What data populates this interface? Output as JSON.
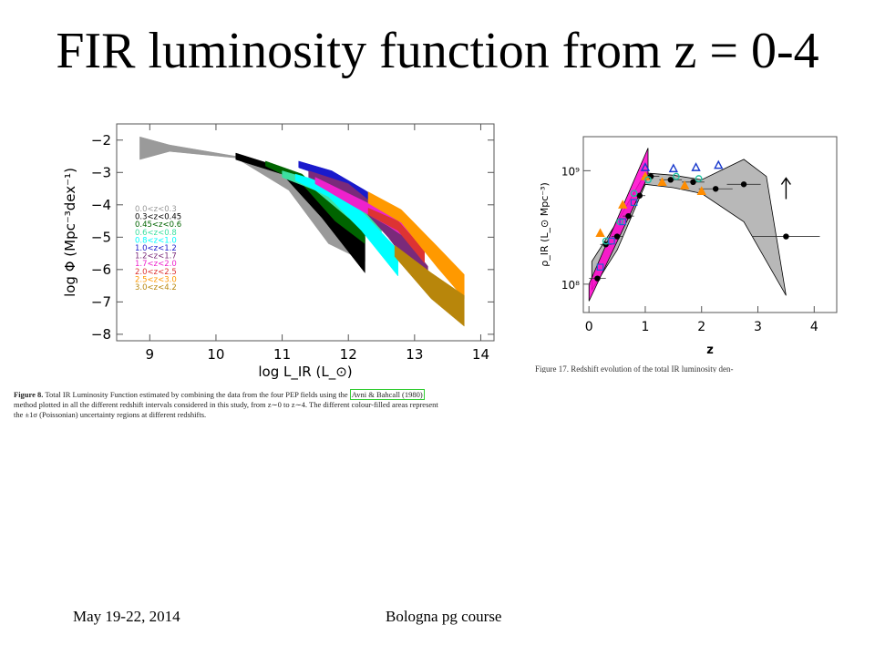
{
  "slide": {
    "title": "FIR luminosity function from z = 0-4",
    "footer_date": "May 19-22, 2014",
    "footer_course": "Bologna pg course"
  },
  "captions": {
    "fig8_label": "Figure 8.",
    "fig8_text_1": " Total IR Luminosity Function estimated by combining the data from the four PEP fields using the ",
    "fig8_cite": "Avni & Bahcall (1980)",
    "fig8_text_2": "method plotted in all the different redshift intervals considered in this study, from z∼0 to z∼4. The different colour-filled areas represent",
    "fig8_text_3": "the ±1σ (Poissonian) uncertainty regions at different redshifts.",
    "fig17_text": "Figure 17. Redshift evolution of the total IR luminosity den-"
  },
  "chart_data": [
    {
      "type": "area",
      "title": "",
      "xlabel": "log L_IR (L_⊙)",
      "ylabel": "log Φ (Mpc⁻³dex⁻¹)",
      "xlim": [
        8.5,
        14.2
      ],
      "ylim": [
        -8.2,
        -1.5
      ],
      "xticks": [
        9,
        10,
        11,
        12,
        13,
        14
      ],
      "yticks": [
        -2,
        -3,
        -4,
        -5,
        -6,
        -7,
        -8
      ],
      "legend_position": "left-middle",
      "series": [
        {
          "name": "0.0<z<0.3",
          "color": "#9a9a9a",
          "upper": [
            [
              8.85,
              -1.9
            ],
            [
              9.3,
              -2.15
            ],
            [
              10.3,
              -2.5
            ],
            [
              11.1,
              -3.05
            ],
            [
              11.7,
              -4.35
            ],
            [
              12.25,
              -4.95
            ]
          ],
          "lower": [
            [
              8.85,
              -2.6
            ],
            [
              9.3,
              -2.35
            ],
            [
              10.3,
              -2.55
            ],
            [
              11.1,
              -3.55
            ],
            [
              11.7,
              -5.2
            ],
            [
              12.25,
              -5.75
            ]
          ]
        },
        {
          "name": "0.3<z<0.45",
          "color": "#000000",
          "upper": [
            [
              10.3,
              -2.4
            ],
            [
              11.0,
              -2.85
            ],
            [
              11.6,
              -3.75
            ],
            [
              12.25,
              -5.0
            ]
          ],
          "lower": [
            [
              10.3,
              -2.6
            ],
            [
              11.0,
              -3.05
            ],
            [
              11.6,
              -4.4
            ],
            [
              12.25,
              -6.1
            ]
          ]
        },
        {
          "name": "0.45<z<0.6",
          "color": "#006400",
          "upper": [
            [
              10.75,
              -2.65
            ],
            [
              11.3,
              -3.05
            ],
            [
              11.8,
              -4.0
            ],
            [
              12.25,
              -4.9
            ]
          ],
          "lower": [
            [
              10.75,
              -2.8
            ],
            [
              11.3,
              -3.35
            ],
            [
              11.8,
              -4.5
            ],
            [
              12.25,
              -5.2
            ]
          ]
        },
        {
          "name": "0.6<z<0.8",
          "color": "#3ce0a0",
          "upper": [
            [
              11.0,
              -2.95
            ],
            [
              11.5,
              -3.25
            ],
            [
              12.0,
              -3.9
            ],
            [
              12.5,
              -4.55
            ]
          ],
          "lower": [
            [
              11.0,
              -3.15
            ],
            [
              11.5,
              -3.55
            ],
            [
              12.0,
              -4.4
            ],
            [
              12.5,
              -5.0
            ]
          ]
        },
        {
          "name": "0.8<z<1.0",
          "color": "#00ffff",
          "upper": [
            [
              11.2,
              -3.05
            ],
            [
              11.7,
              -3.35
            ],
            [
              12.2,
              -4.2
            ],
            [
              12.75,
              -5.4
            ]
          ],
          "lower": [
            [
              11.2,
              -3.25
            ],
            [
              11.7,
              -3.75
            ],
            [
              12.2,
              -4.8
            ],
            [
              12.75,
              -6.2
            ]
          ]
        },
        {
          "name": "1.0<z<1.2",
          "color": "#1a1acc",
          "upper": [
            [
              11.25,
              -2.65
            ],
            [
              11.75,
              -2.95
            ],
            [
              12.25,
              -3.55
            ],
            [
              12.75,
              -4.2
            ]
          ],
          "lower": [
            [
              11.25,
              -2.85
            ],
            [
              11.75,
              -3.2
            ],
            [
              12.25,
              -3.85
            ],
            [
              12.75,
              -4.5
            ]
          ]
        },
        {
          "name": "1.2<z<1.7",
          "color": "#7a2a7a",
          "upper": [
            [
              11.4,
              -2.95
            ],
            [
              12.0,
              -3.35
            ],
            [
              12.6,
              -4.35
            ],
            [
              13.2,
              -5.9
            ]
          ],
          "lower": [
            [
              11.4,
              -3.15
            ],
            [
              12.0,
              -3.65
            ],
            [
              12.6,
              -5.0
            ],
            [
              13.2,
              -6.6
            ]
          ]
        },
        {
          "name": "1.7<z<2.0",
          "color": "#ee22cc",
          "upper": [
            [
              11.5,
              -3.15
            ],
            [
              12.0,
              -3.65
            ],
            [
              12.6,
              -4.25
            ],
            [
              13.0,
              -4.75
            ]
          ],
          "lower": [
            [
              11.5,
              -3.35
            ],
            [
              12.0,
              -3.95
            ],
            [
              12.6,
              -4.65
            ],
            [
              13.0,
              -5.2
            ]
          ]
        },
        {
          "name": "2.0<z<2.5",
          "color": "#dd3333",
          "upper": [
            [
              12.3,
              -4.1
            ],
            [
              12.75,
              -4.5
            ],
            [
              13.15,
              -5.4
            ]
          ],
          "lower": [
            [
              12.3,
              -4.3
            ],
            [
              12.75,
              -4.8
            ],
            [
              13.15,
              -5.8
            ]
          ]
        },
        {
          "name": "2.5<z<3.0",
          "color": "#ff9900",
          "upper": [
            [
              12.3,
              -3.6
            ],
            [
              12.8,
              -4.15
            ],
            [
              13.35,
              -5.3
            ],
            [
              13.75,
              -6.15
            ]
          ],
          "lower": [
            [
              12.3,
              -3.95
            ],
            [
              12.8,
              -4.55
            ],
            [
              13.35,
              -5.95
            ],
            [
              13.75,
              -6.9
            ]
          ]
        },
        {
          "name": "3.0<z<4.2",
          "color": "#b8860b",
          "upper": [
            [
              12.7,
              -5.25
            ],
            [
              13.25,
              -6.1
            ],
            [
              13.75,
              -6.8
            ]
          ],
          "lower": [
            [
              12.7,
              -5.6
            ],
            [
              13.25,
              -6.9
            ],
            [
              13.75,
              -7.75
            ]
          ]
        }
      ]
    },
    {
      "type": "scatter",
      "title": "",
      "xlabel": "z",
      "ylabel": "ρ_IR (L_⊙ Mpc⁻³)",
      "xlim": [
        -0.1,
        4.4
      ],
      "ylim_log10": [
        7.75,
        9.3
      ],
      "log_scale": "y",
      "xticks": [
        0,
        1,
        2,
        3,
        4
      ],
      "yticks": [
        "10⁸",
        "10⁹"
      ],
      "ytick_values_log10": [
        8,
        9
      ],
      "series": [
        {
          "name": "",
          "color": "#000000",
          "marker": "circle",
          "x": [
            0.15,
            0.3,
            0.5,
            0.7,
            0.9,
            1.1,
            1.45,
            1.85,
            2.25,
            2.75,
            3.5
          ],
          "log10_y": [
            8.05,
            8.35,
            8.42,
            8.6,
            8.78,
            8.95,
            8.92,
            8.9,
            8.84,
            8.88,
            8.42
          ],
          "xerr": [
            0.15,
            0.1,
            0.1,
            0.1,
            0.1,
            0.15,
            0.2,
            0.2,
            0.3,
            0.3,
            0.6
          ]
        },
        {
          "name": "",
          "color": "#1a3acc",
          "marker": "open-triangle",
          "x": [
            1.0,
            1.5,
            1.9,
            2.3
          ],
          "log10_y": [
            9.03,
            9.02,
            9.03,
            9.05
          ]
        },
        {
          "name": "",
          "color": "#ff8c00",
          "marker": "triangle",
          "x": [
            0.2,
            0.6,
            1.0,
            1.3,
            1.7,
            2.0
          ],
          "log10_y": [
            8.45,
            8.7,
            8.95,
            8.9,
            8.87,
            8.82
          ]
        },
        {
          "name": "",
          "color": "#20c0a0",
          "marker": "open-circle",
          "x": [
            0.3,
            0.55,
            0.8,
            1.05,
            1.55,
            1.95
          ],
          "log10_y": [
            8.38,
            8.55,
            8.8,
            8.92,
            8.95,
            8.93
          ]
        },
        {
          "name": "",
          "color": "#2060cc",
          "marker": "open-square",
          "x": [
            0.2,
            0.4,
            0.6,
            0.8
          ],
          "log10_y": [
            8.15,
            8.38,
            8.55,
            8.72
          ]
        }
      ],
      "bands": [
        {
          "color": "#888888",
          "upper": [
            [
              0.05,
              8.2
            ],
            [
              0.5,
              8.55
            ],
            [
              1.0,
              8.98
            ],
            [
              1.5,
              8.96
            ],
            [
              2.0,
              8.92
            ],
            [
              2.75,
              9.1
            ],
            [
              3.15,
              8.95
            ]
          ],
          "lower": [
            [
              0.05,
              7.95
            ],
            [
              0.5,
              8.3
            ],
            [
              1.0,
              8.88
            ],
            [
              1.5,
              8.85
            ],
            [
              2.0,
              8.8
            ],
            [
              2.75,
              8.55
            ],
            [
              3.5,
              7.9
            ]
          ]
        },
        {
          "color": "#ff00cc",
          "upper": [
            [
              0.0,
              8.0
            ],
            [
              1.05,
              9.2
            ]
          ],
          "lower": [
            [
              0.0,
              7.85
            ],
            [
              1.05,
              8.95
            ]
          ]
        }
      ],
      "upper_limit_arrow": {
        "x": 3.5,
        "log10_y": 8.75
      }
    }
  ]
}
